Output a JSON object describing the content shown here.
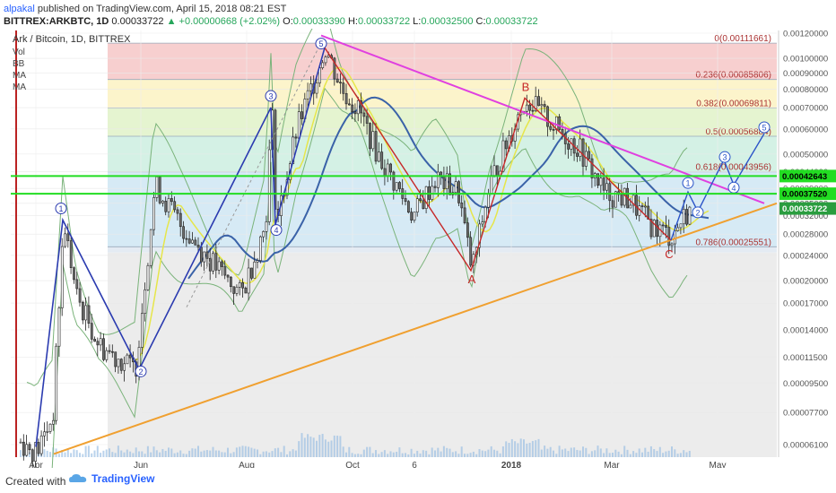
{
  "header": {
    "user": "alpakal",
    "published": "published on TradingView.com, April 15, 2018 08:21 EST",
    "symbol": "BITTREX:ARKBTC, 1D",
    "last": "0.00033722",
    "change": "+0.00000668 (+2.02%)",
    "open_label": "O:",
    "open": "0.00033390",
    "high_label": "H:",
    "high": "0.00033722",
    "low_label": "L:",
    "low": "0.00032500",
    "close_label": "C:",
    "close": "0.00033722"
  },
  "legend": {
    "title": "Ark / Bitcoin, 1D, BITTREX",
    "indicators": [
      "Vol",
      "BB",
      "MA",
      "MA"
    ]
  },
  "footer": {
    "created": "Created with",
    "brand": "TradingView"
  },
  "chart_data": {
    "type": "candlestick",
    "x_ticks": [
      "Apr",
      "Jun",
      "Aug",
      "Oct",
      "6",
      "2018",
      "Mar",
      "May"
    ],
    "y_ticks": [
      "0.00120000",
      "0.00100000",
      "0.00090000",
      "0.00080000",
      "0.00070000",
      "0.00060000",
      "0.00050000",
      "0.00044000",
      "0.00039000",
      "0.00035000",
      "0.00032000",
      "0.00028000",
      "0.00024000",
      "0.00020000",
      "0.00017000",
      "0.00014000",
      "0.00011500",
      "0.00009500",
      "0.00007700",
      "0.00006100"
    ],
    "y_scale": "log",
    "fibonacci": [
      {
        "level": "0",
        "price": "0.00111661",
        "color": "#f6c7c7"
      },
      {
        "level": "0.236",
        "price": "0.00085806",
        "color": "#fbf2c2"
      },
      {
        "level": "0.382",
        "price": "0.00069811",
        "color": "#e0f2c8"
      },
      {
        "level": "0.5",
        "price": "0.00056884",
        "color": "#cdeee0"
      },
      {
        "level": "0.618",
        "price": "0.00043956",
        "color": "#cfe6f3"
      },
      {
        "level": "0.786",
        "price": "0.00025551",
        "color": "#dfe7f1"
      }
    ],
    "price_lines": [
      {
        "price": "0.00042643",
        "color": "#22dd22"
      },
      {
        "price": "0.00037520",
        "color": "#22dd22"
      }
    ],
    "last_price": {
      "price": "0.00033722",
      "color": "#2a9d3f"
    },
    "waves": {
      "impulse_labels": [
        "1",
        "2",
        "3",
        "4",
        "5"
      ],
      "corrective_labels": [
        "A",
        "B",
        "C"
      ],
      "projection_labels": [
        "1",
        "2",
        "3",
        "4",
        "5"
      ]
    },
    "colors": {
      "wave": "#2b3bb0",
      "corrective": "#c62828",
      "resistance": "#e040e0",
      "support": "#f0a030",
      "ma_fast": "#e6e64a",
      "ma_slow": "#3a62a8",
      "bollinger": "#7ab37a"
    }
  }
}
